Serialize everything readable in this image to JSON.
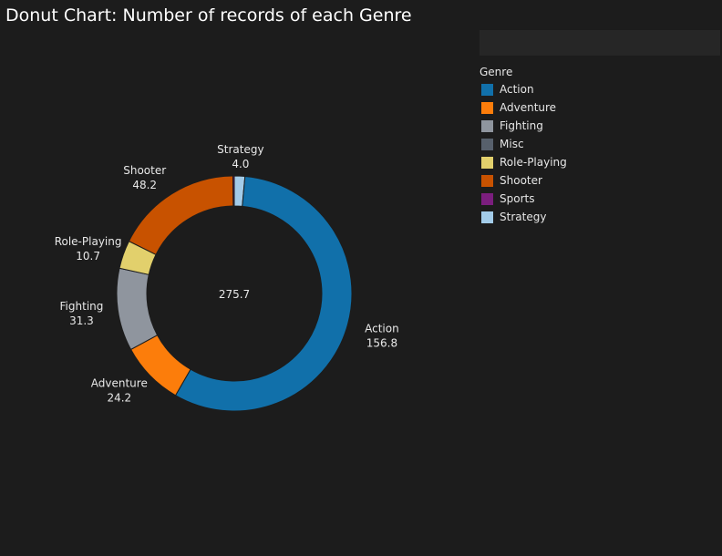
{
  "title": "Donut Chart: Number of records of each Genre",
  "chart_data": {
    "type": "pie",
    "donut": true,
    "title": "Donut Chart: Number of records of each Genre",
    "total_label": "275.7",
    "legend_title": "Genre",
    "legend_placement": "right",
    "categories": [
      "Action",
      "Adventure",
      "Fighting",
      "Misc",
      "Role-Playing",
      "Shooter",
      "Sports",
      "Strategy"
    ],
    "colors": [
      "#1170aa",
      "#fc7d0b",
      "#8f959e",
      "#57606c",
      "#e2d06c",
      "#c85200",
      "#7b1e7e",
      "#a3cce9"
    ],
    "slices": [
      {
        "label": "Strategy",
        "value": 4.0,
        "value_label": "4.0",
        "color": "#a3cce9"
      },
      {
        "label": "Action",
        "value": 156.8,
        "value_label": "156.8",
        "color": "#1170aa"
      },
      {
        "label": "Adventure",
        "value": 24.2,
        "value_label": "24.2",
        "color": "#fc7d0b"
      },
      {
        "label": "Fighting",
        "value": 31.3,
        "value_label": "31.3",
        "color": "#8f959e"
      },
      {
        "label": "Role-Playing",
        "value": 10.7,
        "value_label": "10.7",
        "color": "#e2d06c"
      },
      {
        "label": "Shooter",
        "value": 48.2,
        "value_label": "48.2",
        "color": "#c85200"
      },
      {
        "label": "Sports",
        "value": 0.5,
        "value_label": "",
        "color": "#7b1e7e"
      }
    ]
  }
}
